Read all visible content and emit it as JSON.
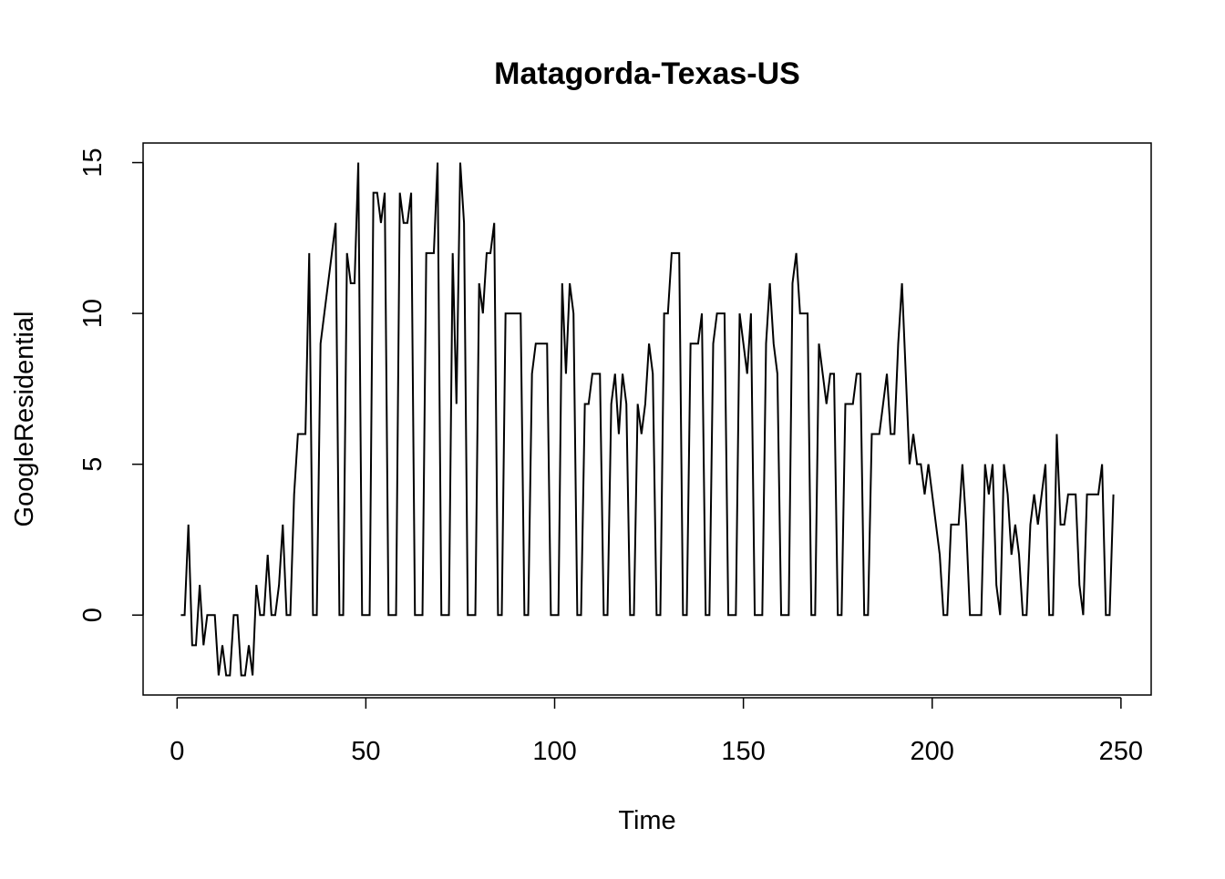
{
  "chart_data": {
    "type": "line",
    "title": "Matagorda-Texas-US",
    "xlabel": "Time",
    "ylabel": "GoogleResidential",
    "xlim": [
      -9,
      258
    ],
    "ylim": [
      -2.65,
      15.65
    ],
    "xticks": [
      0,
      50,
      100,
      150,
      200,
      250
    ],
    "yticks": [
      0,
      5,
      10,
      15
    ],
    "grid": false,
    "legend": "none",
    "line_color": "#000000",
    "series": [
      {
        "x": [
          1,
          2,
          3,
          4,
          5,
          6,
          7,
          8,
          9,
          10,
          11,
          12,
          13,
          14,
          15,
          16,
          17,
          18,
          19,
          20,
          21,
          22,
          23,
          24,
          25,
          26,
          27,
          28,
          29,
          30,
          31,
          32,
          33,
          34,
          35,
          36,
          37,
          38,
          39,
          40,
          41,
          42,
          43,
          44,
          45,
          46,
          47,
          48,
          49,
          50,
          51,
          52,
          53,
          54,
          55,
          56,
          57,
          58,
          59,
          60,
          61,
          62,
          63,
          64,
          65,
          66,
          67,
          68,
          69,
          70,
          71,
          72,
          73,
          74,
          75,
          76,
          77,
          78,
          79,
          80,
          81,
          82,
          83,
          84,
          85,
          86,
          87,
          88,
          89,
          90,
          91,
          92,
          93,
          94,
          95,
          96,
          97,
          98,
          99,
          100,
          101,
          102,
          103,
          104,
          105,
          106,
          107,
          108,
          109,
          110,
          111,
          112,
          113,
          114,
          115,
          116,
          117,
          118,
          119,
          120,
          121,
          122,
          123,
          124,
          125,
          126,
          127,
          128,
          129,
          130,
          131,
          132,
          133,
          134,
          135,
          136,
          137,
          138,
          139,
          140,
          141,
          142,
          143,
          144,
          145,
          146,
          147,
          148,
          149,
          150,
          151,
          152,
          153,
          154,
          155,
          156,
          157,
          158,
          159,
          160,
          161,
          162,
          163,
          164,
          165,
          166,
          167,
          168,
          169,
          170,
          171,
          172,
          173,
          174,
          175,
          176,
          177,
          178,
          179,
          180,
          181,
          182,
          183,
          184,
          185,
          186,
          187,
          188,
          189,
          190,
          191,
          192,
          193,
          194,
          195,
          196,
          197,
          198,
          199,
          200,
          201,
          202,
          203,
          204,
          205,
          206,
          207,
          208,
          209,
          210,
          211,
          212,
          213,
          214,
          215,
          216,
          217,
          218,
          219,
          220,
          221,
          222,
          223,
          224,
          225,
          226,
          227,
          228,
          229,
          230,
          231,
          232,
          233,
          234,
          235,
          236,
          237,
          238,
          239,
          240,
          241,
          242,
          243,
          244,
          245,
          246,
          247,
          248
        ],
        "y": [
          0,
          0,
          3,
          -1,
          -1,
          1,
          -1,
          0,
          0,
          0,
          -2,
          -1,
          -2,
          -2,
          0,
          0,
          -2,
          -2,
          -1,
          -2,
          1,
          0,
          0,
          2,
          0,
          0,
          1,
          3,
          0,
          0,
          4,
          6,
          6,
          6,
          12,
          0,
          0,
          9,
          10,
          11,
          12,
          13,
          0,
          0,
          12,
          11,
          11,
          15,
          0,
          0,
          0,
          14,
          14,
          13,
          14,
          0,
          0,
          0,
          14,
          13,
          13,
          14,
          0,
          0,
          0,
          12,
          12,
          12,
          15,
          0,
          0,
          0,
          12,
          7,
          15,
          13,
          0,
          0,
          0,
          11,
          10,
          12,
          12,
          13,
          0,
          0,
          10,
          10,
          10,
          10,
          10,
          0,
          0,
          8,
          9,
          9,
          9,
          9,
          0,
          0,
          0,
          11,
          8,
          11,
          10,
          0,
          0,
          7,
          7,
          8,
          8,
          8,
          0,
          0,
          7,
          8,
          6,
          8,
          7,
          0,
          0,
          7,
          6,
          7,
          9,
          8,
          0,
          0,
          10,
          10,
          12,
          12,
          12,
          0,
          0,
          9,
          9,
          9,
          10,
          0,
          0,
          9,
          10,
          10,
          10,
          0,
          0,
          0,
          10,
          9,
          8,
          10,
          0,
          0,
          0,
          9,
          11,
          9,
          8,
          0,
          0,
          0,
          11,
          12,
          10,
          10,
          10,
          0,
          0,
          9,
          8,
          7,
          8,
          8,
          0,
          0,
          7,
          7,
          7,
          8,
          8,
          0,
          0,
          6,
          6,
          6,
          7,
          8,
          6,
          6,
          9,
          11,
          8,
          5,
          6,
          5,
          5,
          4,
          5,
          4,
          3,
          2,
          0,
          0,
          3,
          3,
          3,
          5,
          3,
          0,
          0,
          0,
          0,
          5,
          4,
          5,
          1,
          0,
          5,
          4,
          2,
          3,
          2,
          0,
          0,
          3,
          4,
          3,
          4,
          5,
          0,
          0,
          6,
          3,
          3,
          4,
          4,
          4,
          1,
          0,
          4,
          4,
          4,
          4,
          5,
          0,
          0,
          4
        ]
      }
    ]
  }
}
